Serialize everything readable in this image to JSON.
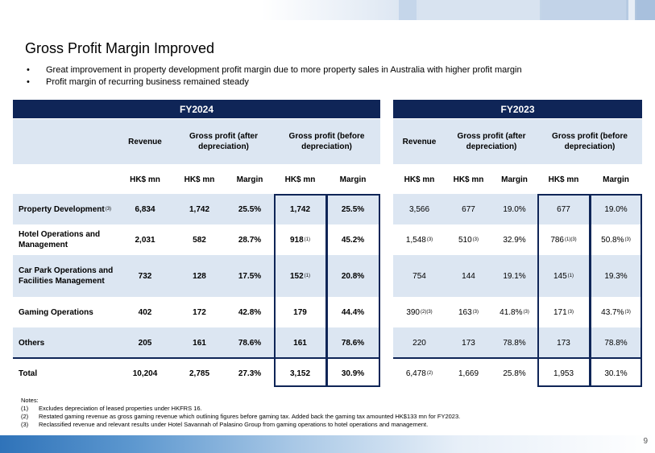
{
  "title": "Gross Profit Margin Improved",
  "bullets": [
    "Great improvement in property development profit margin due to more property sales in Australia with higher profit margin",
    "Profit margin of recurring business remained steady"
  ],
  "fy2024": {
    "label": "FY2024",
    "headers": [
      "Revenue",
      "Gross profit (after depreciation)",
      "Gross profit (before depreciation)"
    ],
    "units": [
      "HK$ mn",
      "HK$ mn",
      "Margin",
      "HK$ mn",
      "Margin"
    ]
  },
  "fy2023": {
    "label": "FY2023",
    "headers": [
      "Revenue",
      "Gross profit (after depreciation)",
      "Gross profit (before depreciation)"
    ],
    "units": [
      "HK$ mn",
      "HK$ mn",
      "Margin",
      "HK$ mn",
      "Margin"
    ]
  },
  "rows": [
    {
      "label": "Property Development",
      "label_note": "(3)",
      "fy24": [
        "6,834",
        "1,742",
        "25.5%",
        "1,742",
        "25.5%"
      ],
      "fy24_notes": [
        "",
        "",
        "",
        "",
        ""
      ],
      "fy23": [
        "3,566",
        "677",
        "19.0%",
        "677",
        "19.0%"
      ],
      "fy23_notes": [
        "",
        "",
        "",
        "",
        ""
      ]
    },
    {
      "label": "Hotel Operations and Management",
      "label_note": "",
      "fy24": [
        "2,031",
        "582",
        "28.7%",
        "918",
        "45.2%"
      ],
      "fy24_notes": [
        "",
        "",
        "",
        "(1)",
        ""
      ],
      "fy23": [
        "1,548",
        "510",
        "32.9%",
        "786",
        "50.8%"
      ],
      "fy23_notes": [
        "(3)",
        "(3)",
        "",
        "(1)(3)",
        "(3)"
      ]
    },
    {
      "label": "Car Park Operations and Facilities Management",
      "label_note": "",
      "fy24": [
        "732",
        "128",
        "17.5%",
        "152",
        "20.8%"
      ],
      "fy24_notes": [
        "",
        "",
        "",
        "(1)",
        ""
      ],
      "fy23": [
        "754",
        "144",
        "19.1%",
        "145",
        "19.3%"
      ],
      "fy23_notes": [
        "",
        "",
        "",
        "(1)",
        ""
      ]
    },
    {
      "label": "Gaming Operations",
      "label_note": "",
      "fy24": [
        "402",
        "172",
        "42.8%",
        "179",
        "44.4%"
      ],
      "fy24_notes": [
        "",
        "",
        "",
        "",
        ""
      ],
      "fy23": [
        "390",
        "163",
        "41.8%",
        "171",
        "43.7%"
      ],
      "fy23_notes": [
        "(2)(3)",
        "(3)",
        "(3)",
        "(3)",
        "(3)"
      ]
    },
    {
      "label": "Others",
      "label_note": "",
      "fy24": [
        "205",
        "161",
        "78.6%",
        "161",
        "78.6%"
      ],
      "fy24_notes": [
        "",
        "",
        "",
        "",
        ""
      ],
      "fy23": [
        "220",
        "173",
        "78.8%",
        "173",
        "78.8%"
      ],
      "fy23_notes": [
        "",
        "",
        "",
        "",
        ""
      ]
    },
    {
      "label": "Total",
      "label_note": "",
      "fy24": [
        "10,204",
        "2,785",
        "27.3%",
        "3,152",
        "30.9%"
      ],
      "fy24_notes": [
        "",
        "",
        "",
        "",
        ""
      ],
      "fy23": [
        "6,478",
        "1,669",
        "25.8%",
        "1,953",
        "30.1%"
      ],
      "fy23_notes": [
        "(2)",
        "",
        "",
        "",
        ""
      ]
    }
  ],
  "notes": {
    "heading": "Notes:",
    "items": [
      {
        "key": "(1)",
        "text": "Excludes depreciation of leased properties under HKFRS 16."
      },
      {
        "key": "(2)",
        "text": "Restated gaming revenue as gross gaming revenue which outlining figures before gaming tax. Added back the gaming tax amounted HK$133 mn for FY2023."
      },
      {
        "key": "(3)",
        "text": "Reclassified revenue and relevant results under Hotel Savannah of Palasino Group from gaming operations to hotel operations and management."
      }
    ]
  },
  "page_number": "9"
}
